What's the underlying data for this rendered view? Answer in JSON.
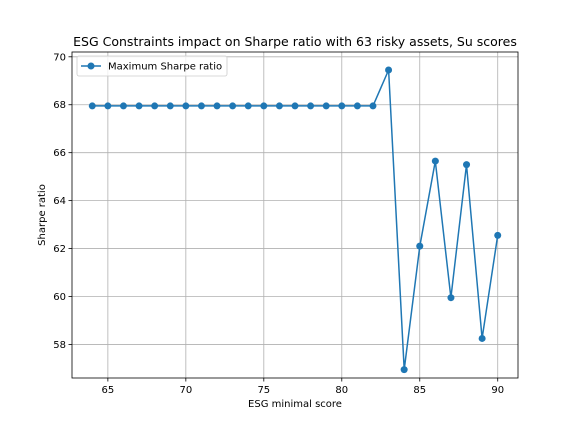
{
  "chart_data": {
    "type": "line",
    "title": "ESG Constraints impact on Sharpe ratio with 63 risky assets, Su scores",
    "xlabel": "ESG minimal score",
    "ylabel": "Sharpe ratio",
    "xlim": [
      62.7,
      91.3
    ],
    "ylim": [
      56.6,
      70.2
    ],
    "xticks": [
      65,
      70,
      75,
      80,
      85,
      90
    ],
    "yticks": [
      58,
      60,
      62,
      64,
      66,
      68,
      70
    ],
    "grid": true,
    "legend_position": "top-left",
    "series": [
      {
        "name": "Maximum Sharpe ratio",
        "color": "#1f77b4",
        "marker": "circle",
        "x": [
          64,
          65,
          66,
          67,
          68,
          69,
          70,
          71,
          72,
          73,
          74,
          75,
          76,
          77,
          78,
          79,
          80,
          81,
          82,
          83,
          84,
          85,
          86,
          87,
          88,
          89,
          90
        ],
        "y": [
          67.95,
          67.95,
          67.95,
          67.95,
          67.95,
          67.95,
          67.95,
          67.95,
          67.95,
          67.95,
          67.95,
          67.95,
          67.95,
          67.95,
          67.95,
          67.95,
          67.95,
          67.95,
          67.95,
          69.45,
          56.95,
          62.1,
          65.65,
          59.95,
          65.5,
          58.25,
          62.55
        ]
      }
    ]
  }
}
